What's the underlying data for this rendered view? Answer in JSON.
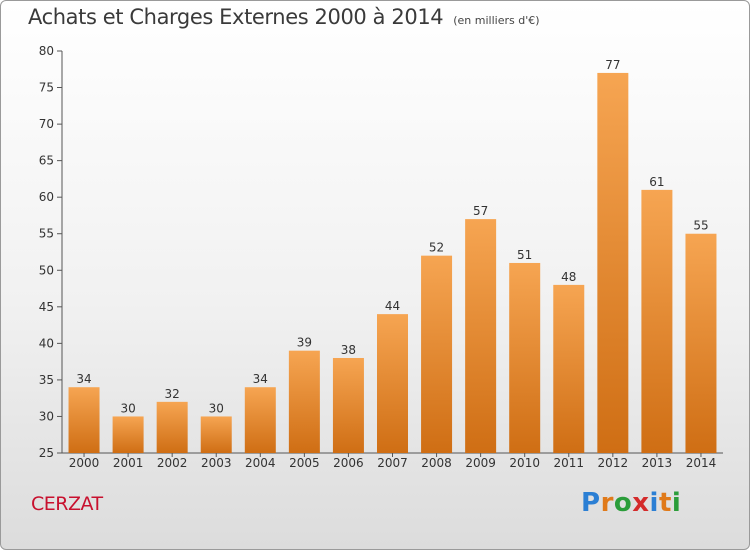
{
  "header": {
    "title": "Achats et Charges Externes 2000 à 2014",
    "subtitle": "(en milliers d'€)"
  },
  "footer": {
    "commune": "CERZAT",
    "logo_text": "Proxiti",
    "logo_letters": [
      {
        "char": "P",
        "color": "#2b7fd4"
      },
      {
        "char": "r",
        "color": "#e07a1a"
      },
      {
        "char": "o",
        "color": "#2b9d3a"
      },
      {
        "char": "x",
        "color": "#d42b2b"
      },
      {
        "char": "i",
        "color": "#2b7fd4"
      },
      {
        "char": "t",
        "color": "#e07a1a"
      },
      {
        "char": "i",
        "color": "#2b9d3a"
      }
    ]
  },
  "colors": {
    "bar_top": "#f6a552",
    "bar_bottom": "#cf6e14",
    "axis": "#555555",
    "grid": "#dddddd"
  },
  "chart_data": {
    "type": "bar",
    "title": "Achats et Charges Externes 2000 à 2014",
    "subtitle": "(en milliers d'€)",
    "xlabel": "",
    "ylabel": "",
    "categories": [
      "2000",
      "2001",
      "2002",
      "2003",
      "2004",
      "2005",
      "2006",
      "2007",
      "2008",
      "2009",
      "2010",
      "2011",
      "2012",
      "2013",
      "2014"
    ],
    "values": [
      34,
      30,
      32,
      30,
      34,
      39,
      38,
      44,
      52,
      57,
      51,
      48,
      77,
      61,
      55
    ],
    "ylim": [
      25,
      80
    ],
    "yticks": [
      25,
      30,
      35,
      40,
      45,
      50,
      55,
      60,
      65,
      70,
      75,
      80
    ],
    "grid": false,
    "legend": "none"
  }
}
